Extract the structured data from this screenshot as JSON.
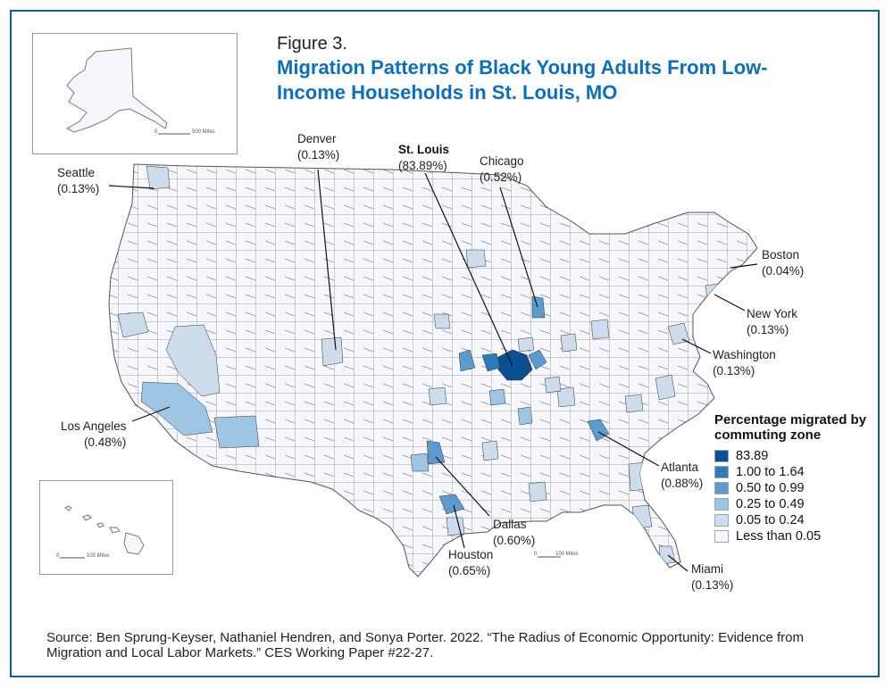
{
  "figure_label": "Figure 3.",
  "title": "Migration Patterns of Black Young Adults From Low-Income Households in St. Louis, MO",
  "legend": {
    "title": "Percentage migrated by commuting zone",
    "items": [
      {
        "label": "83.89",
        "color": "#0b4f94"
      },
      {
        "label": "1.00 to 1.64",
        "color": "#2f79bd"
      },
      {
        "label": "0.50 to 0.99",
        "color": "#5d9ad0"
      },
      {
        "label": "0.25 to 0.49",
        "color": "#9cc6e4"
      },
      {
        "label": "0.05 to 0.24",
        "color": "#cddced"
      },
      {
        "label": "Less than 0.05",
        "color": "#f6f7fb"
      }
    ]
  },
  "cities": [
    {
      "name": "Seattle",
      "value": "(0.13%)"
    },
    {
      "name": "Denver",
      "value": "(0.13%)"
    },
    {
      "name": "St. Louis",
      "value": "(83.89%)"
    },
    {
      "name": "Chicago",
      "value": "(0.52%)"
    },
    {
      "name": "Boston",
      "value": "(0.04%)"
    },
    {
      "name": "New York",
      "value": "(0.13%)"
    },
    {
      "name": "Washington",
      "value": "(0.13%)"
    },
    {
      "name": "Los Angeles",
      "value": "(0.48%)"
    },
    {
      "name": "Atlanta",
      "value": "(0.88%)"
    },
    {
      "name": "Dallas",
      "value": "(0.60%)"
    },
    {
      "name": "Houston",
      "value": "(0.65%)"
    },
    {
      "name": "Miami",
      "value": "(0.13%)"
    }
  ],
  "scale_bars": {
    "alaska_start": "0",
    "alaska": "500 Miles",
    "hawaii_start": "0",
    "hawaii": "100 Miles",
    "mainland_start": "0",
    "mainland": "100 Miles"
  },
  "source": "Source: Ben Sprung-Keyser, Nathaniel Hendren, and Sonya Porter. 2022. “The Radius of Economic Opportunity: Evidence from Migration and Local Labor Markets.” CES Working Paper #22-27."
}
